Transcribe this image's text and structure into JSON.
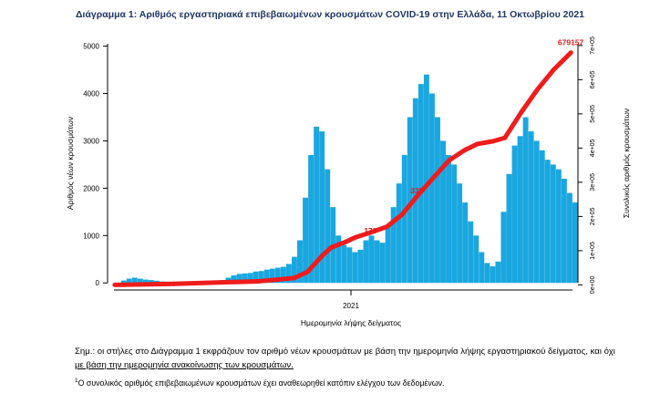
{
  "chart_title": "Διάγραμμα 1: Αριθμός εργαστηριακά επιβεβαιωμένων κρουσμάτων COVID-19 στην Ελλάδα, 11 Οκτωβρίου 2021",
  "colors": {
    "bars": "#1aa7e0",
    "cumulative_line": "#ee1c1c",
    "cumulative_label": "#e31a1c",
    "title": "#1f3864"
  },
  "chart_data": {
    "type": "bar",
    "title": "Διάγραμμα 1: Αριθμός εργαστηριακά επιβεβαιωμένων κρουσμάτων COVID-19 στην Ελλάδα, 11 Οκτωβρίου 2021",
    "xlabel": "Ημερομηνία λήψης δείγματος",
    "ylabel": "Αριθμός νέων κρουσμάτων",
    "y2label": "Συνολικός αριθμός κρουσμάτων",
    "x_tick_labels": [
      "2021"
    ],
    "y_ticks": [
      0,
      1000,
      2000,
      3000,
      4000,
      5000
    ],
    "y_tick_labels": [
      "0",
      "1000",
      "2000",
      "3000",
      "4000",
      "5000"
    ],
    "ylim": [
      -150,
      5050
    ],
    "y2_ticks": [
      "0e+00",
      "1e+05",
      "2e+05",
      "3e+05",
      "4e+05",
      "5e+05",
      "6e+05",
      "7e+05"
    ],
    "y2lim": [
      -15000,
      705000
    ],
    "grid": false,
    "weekly_new_cases_series": {
      "name": "Νέα κρούσματα",
      "weeks": [
        "2020-03-09",
        "2020-03-16",
        "2020-03-23",
        "2020-03-30",
        "2020-04-06",
        "2020-04-13",
        "2020-04-20",
        "2020-04-27",
        "2020-05-04",
        "2020-05-11",
        "2020-05-18",
        "2020-05-25",
        "2020-06-01",
        "2020-06-08",
        "2020-06-15",
        "2020-06-22",
        "2020-06-29",
        "2020-07-06",
        "2020-07-13",
        "2020-07-20",
        "2020-07-27",
        "2020-08-03",
        "2020-08-10",
        "2020-08-17",
        "2020-08-24",
        "2020-08-31",
        "2020-09-07",
        "2020-09-14",
        "2020-09-21",
        "2020-09-28",
        "2020-10-05",
        "2020-10-12",
        "2020-10-19",
        "2020-10-26",
        "2020-11-02",
        "2020-11-09",
        "2020-11-16",
        "2020-11-23",
        "2020-11-30",
        "2020-12-07",
        "2020-12-14",
        "2020-12-21",
        "2020-12-28",
        "2021-01-04",
        "2021-01-11",
        "2021-01-18",
        "2021-01-25",
        "2021-02-01",
        "2021-02-08",
        "2021-02-15",
        "2021-02-22",
        "2021-03-01",
        "2021-03-08",
        "2021-03-15",
        "2021-03-22",
        "2021-03-29",
        "2021-04-05",
        "2021-04-12",
        "2021-04-19",
        "2021-04-26",
        "2021-05-03",
        "2021-05-10",
        "2021-05-17",
        "2021-05-24",
        "2021-05-31",
        "2021-06-07",
        "2021-06-14",
        "2021-06-21",
        "2021-06-28",
        "2021-07-05",
        "2021-07-12",
        "2021-07-19",
        "2021-07-26",
        "2021-08-02",
        "2021-08-09",
        "2021-08-16",
        "2021-08-23",
        "2021-08-30",
        "2021-09-06",
        "2021-09-13",
        "2021-09-20",
        "2021-09-27",
        "2021-10-04"
      ],
      "values": [
        50,
        90,
        110,
        90,
        70,
        60,
        45,
        30,
        25,
        20,
        15,
        12,
        12,
        15,
        25,
        30,
        35,
        40,
        60,
        110,
        160,
        190,
        200,
        210,
        240,
        250,
        280,
        300,
        320,
        340,
        400,
        550,
        900,
        1800,
        2700,
        3300,
        3200,
        2400,
        1600,
        1000,
        800,
        750,
        650,
        700,
        900,
        1000,
        900,
        850,
        1200,
        1600,
        2100,
        2700,
        3500,
        3900,
        4200,
        4400,
        4000,
        3500,
        3000,
        2700,
        2500,
        2100,
        1700,
        1300,
        1000,
        650,
        420,
        350,
        450,
        1500,
        2300,
        2900,
        3100,
        3500,
        3200,
        3000,
        2800,
        2600,
        2500,
        2400,
        2200,
        1900,
        1700
      ]
    },
    "cumulative_series": {
      "name": "Συνολικός αριθμός κρουσμάτων",
      "dates": [
        "2020-03-01",
        "2020-05-15",
        "2020-08-31",
        "2020-10-15",
        "2020-11-01",
        "2020-11-20",
        "2020-12-01",
        "2020-12-20",
        "2021-01-01",
        "2021-01-20",
        "2021-02-10",
        "2021-03-01",
        "2021-03-20",
        "2021-04-10",
        "2021-04-30",
        "2021-05-20",
        "2021-06-05",
        "2021-06-25",
        "2021-07-10",
        "2021-07-31",
        "2021-08-20",
        "2021-09-10",
        "2021-10-02"
      ],
      "values": [
        0,
        3000,
        10500,
        20000,
        38000,
        86000,
        109000,
        126000,
        139000,
        153000,
        170000,
        205000,
        258000,
        313000,
        364000,
        394000,
        412000,
        420000,
        430000,
        505000,
        570000,
        629000,
        679157
      ]
    },
    "data_labels": [
      {
        "series": "Συνολικός αριθμός κρουσμάτων",
        "date": "2021-10-02",
        "text": "679157"
      },
      {
        "series": "Συνολικός αριθμός κρουσμάτων",
        "date": "2021-03-27",
        "text": "339"
      },
      {
        "series": "Συνολικός αριθμός κρουσμάτων",
        "date": "2021-01-27",
        "text": "170"
      }
    ]
  },
  "note_text_line1": "Σημ.: οι στήλες στο Διάγραμμα 1 εκφράζουν τον αριθμό νέων κρουσμάτων με βάση την ημερομηνία λήψης εργαστηριακού δείγματος, και όχι",
  "note_text_line2": "με βάση την ημερομηνία ανακοίνωσης των κρουσμάτων.",
  "footnote_marker": "1",
  "footnote_text": "Ο συνολικός αριθμός επιβεβαιωμένων κρουσμάτων έχει αναθεωρηθεί κατόπιν ελέγχου των δεδομένων."
}
